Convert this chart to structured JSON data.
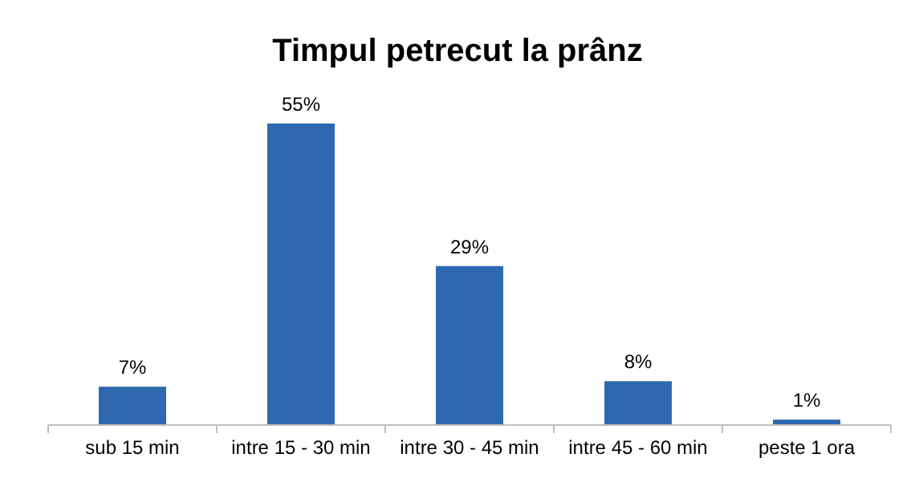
{
  "chart_data": {
    "type": "bar",
    "title": "Timpul petrecut la prânz",
    "categories": [
      "sub 15 min",
      "intre 15 - 30 min",
      "intre 30 - 45 min",
      "intre 45 - 60 min",
      "peste 1 ora"
    ],
    "values": [
      7,
      55,
      29,
      8,
      1
    ],
    "value_labels": [
      "7%",
      "55%",
      "29%",
      "8%",
      "1%"
    ],
    "color": "#2e69b0"
  }
}
